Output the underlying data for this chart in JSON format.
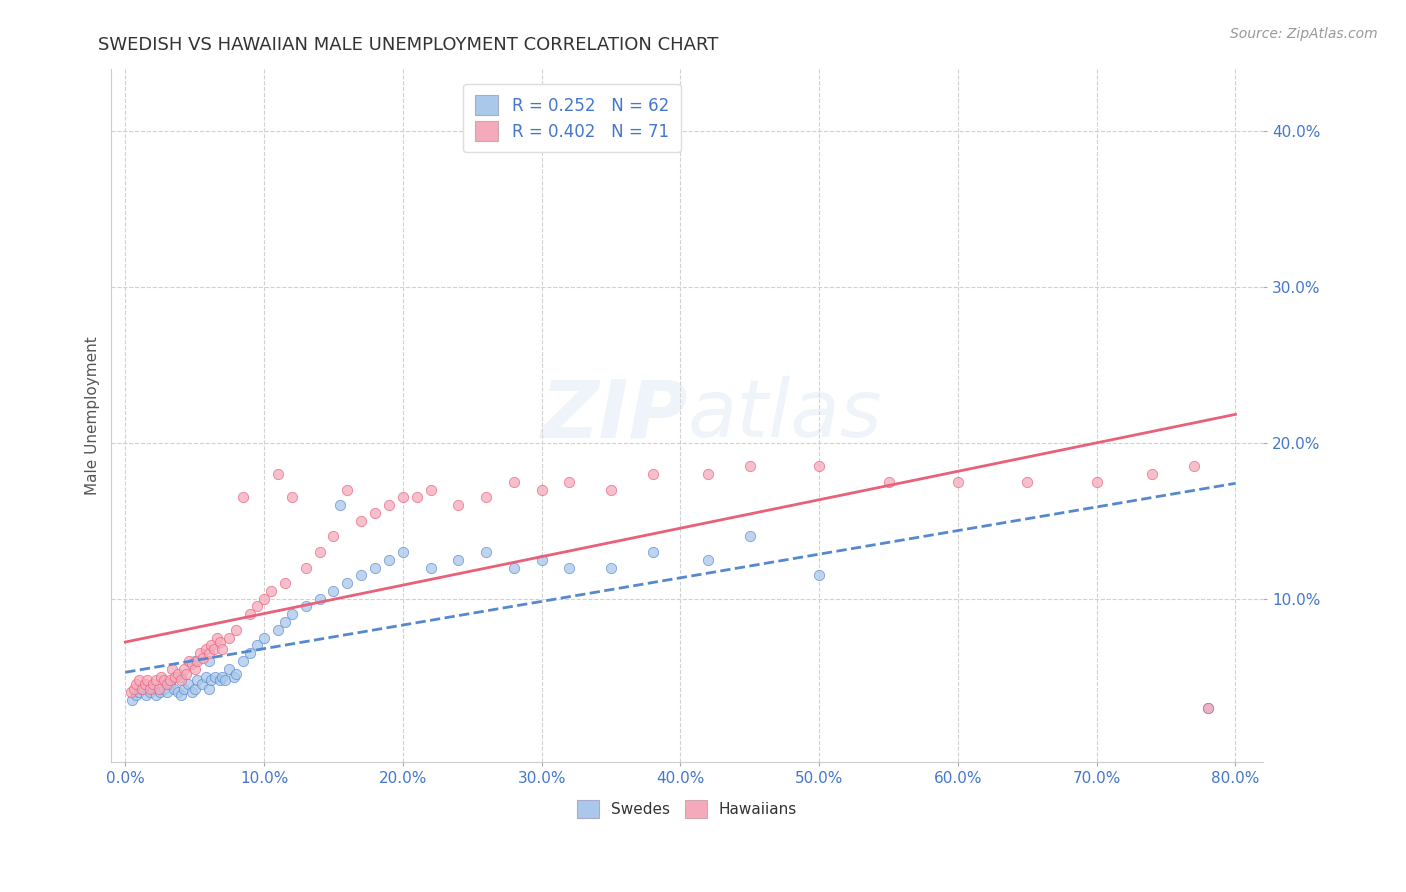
{
  "title": "SWEDISH VS HAWAIIAN MALE UNEMPLOYMENT CORRELATION CHART",
  "source": "Source: ZipAtlas.com",
  "ylabel": "Male Unemployment",
  "watermark": "ZIPatlas",
  "legend_swedes": "Swedes",
  "legend_hawaiians": "Hawaiians",
  "R_swedes": 0.252,
  "N_swedes": 62,
  "R_hawaiians": 0.402,
  "N_hawaiians": 71,
  "color_swedes": "#aac8ea",
  "color_hawaiians": "#f5aabb",
  "line_color_swedes": "#5588cc",
  "line_color_hawaiians": "#e8607a",
  "xlim": [
    -0.01,
    0.82
  ],
  "ylim": [
    -0.005,
    0.44
  ],
  "xticks": [
    0.0,
    0.1,
    0.2,
    0.3,
    0.4,
    0.5,
    0.6,
    0.7,
    0.8
  ],
  "yticks": [
    0.1,
    0.2,
    0.3,
    0.4
  ],
  "background_color": "#ffffff",
  "grid_color": "#cccccc",
  "title_color": "#333333",
  "axis_label_color": "#555555",
  "tick_label_color": "#4477cc",
  "swedes_x": [
    0.005,
    0.008,
    0.01,
    0.012,
    0.015,
    0.018,
    0.02,
    0.022,
    0.025,
    0.028,
    0.03,
    0.032,
    0.035,
    0.038,
    0.04,
    0.04,
    0.042,
    0.045,
    0.048,
    0.05,
    0.05,
    0.052,
    0.055,
    0.058,
    0.06,
    0.06,
    0.062,
    0.065,
    0.068,
    0.07,
    0.072,
    0.075,
    0.078,
    0.08,
    0.085,
    0.09,
    0.095,
    0.1,
    0.11,
    0.115,
    0.12,
    0.13,
    0.14,
    0.15,
    0.155,
    0.16,
    0.17,
    0.18,
    0.19,
    0.2,
    0.22,
    0.24,
    0.26,
    0.28,
    0.3,
    0.32,
    0.35,
    0.38,
    0.42,
    0.45,
    0.5,
    0.78
  ],
  "swedes_y": [
    0.035,
    0.038,
    0.04,
    0.042,
    0.038,
    0.04,
    0.042,
    0.038,
    0.04,
    0.042,
    0.04,
    0.045,
    0.042,
    0.04,
    0.038,
    0.05,
    0.042,
    0.045,
    0.04,
    0.042,
    0.06,
    0.048,
    0.045,
    0.05,
    0.042,
    0.06,
    0.048,
    0.05,
    0.048,
    0.05,
    0.048,
    0.055,
    0.05,
    0.052,
    0.06,
    0.065,
    0.07,
    0.075,
    0.08,
    0.085,
    0.09,
    0.095,
    0.1,
    0.105,
    0.16,
    0.11,
    0.115,
    0.12,
    0.125,
    0.13,
    0.12,
    0.125,
    0.13,
    0.12,
    0.125,
    0.12,
    0.12,
    0.13,
    0.125,
    0.14,
    0.115,
    0.03
  ],
  "hawaiians_x": [
    0.004,
    0.006,
    0.008,
    0.01,
    0.012,
    0.014,
    0.016,
    0.018,
    0.02,
    0.022,
    0.024,
    0.026,
    0.028,
    0.03,
    0.032,
    0.034,
    0.036,
    0.038,
    0.04,
    0.042,
    0.044,
    0.046,
    0.048,
    0.05,
    0.052,
    0.054,
    0.056,
    0.058,
    0.06,
    0.062,
    0.064,
    0.066,
    0.068,
    0.07,
    0.075,
    0.08,
    0.085,
    0.09,
    0.095,
    0.1,
    0.105,
    0.11,
    0.115,
    0.12,
    0.13,
    0.14,
    0.15,
    0.16,
    0.17,
    0.18,
    0.19,
    0.2,
    0.21,
    0.22,
    0.24,
    0.26,
    0.28,
    0.3,
    0.32,
    0.35,
    0.38,
    0.42,
    0.45,
    0.5,
    0.55,
    0.6,
    0.65,
    0.7,
    0.74,
    0.77,
    0.78
  ],
  "hawaiians_y": [
    0.04,
    0.042,
    0.045,
    0.048,
    0.042,
    0.045,
    0.048,
    0.042,
    0.045,
    0.048,
    0.042,
    0.05,
    0.048,
    0.045,
    0.048,
    0.055,
    0.05,
    0.052,
    0.048,
    0.055,
    0.052,
    0.06,
    0.058,
    0.055,
    0.06,
    0.065,
    0.062,
    0.068,
    0.065,
    0.07,
    0.068,
    0.075,
    0.072,
    0.068,
    0.075,
    0.08,
    0.165,
    0.09,
    0.095,
    0.1,
    0.105,
    0.18,
    0.11,
    0.165,
    0.12,
    0.13,
    0.14,
    0.17,
    0.15,
    0.155,
    0.16,
    0.165,
    0.165,
    0.17,
    0.16,
    0.165,
    0.175,
    0.17,
    0.175,
    0.17,
    0.18,
    0.18,
    0.185,
    0.185,
    0.175,
    0.175,
    0.175,
    0.175,
    0.18,
    0.185,
    0.03
  ],
  "trend_x_start": 0.0,
  "trend_x_end": 0.8
}
